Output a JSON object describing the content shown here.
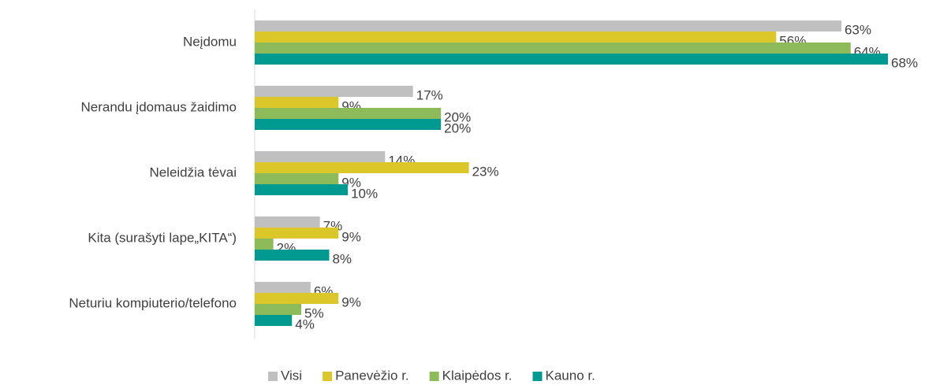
{
  "chart_data": {
    "type": "bar",
    "orientation": "horizontal",
    "categories": [
      "Neįdomu",
      "Nerandu įdomaus žaidimo",
      "Neleidžia tėvai",
      "Kita (surašyti lape„KITA“)",
      "Neturiu kompiuterio/telefono"
    ],
    "series": [
      {
        "name": "Visi",
        "color": "#c0c0c0",
        "values": [
          63,
          17,
          14,
          7,
          6
        ],
        "value_labels": [
          "63%",
          "17%",
          "14%",
          "7%",
          "6%"
        ]
      },
      {
        "name": "Panevėžio r.",
        "color": "#dcc72a",
        "values": [
          56,
          9,
          23,
          9,
          9
        ],
        "value_labels": [
          "56%",
          "9%",
          "23%",
          "9%",
          "9%"
        ]
      },
      {
        "name": "Klaipėdos r.",
        "color": "#8dbb5a",
        "values": [
          64,
          20,
          9,
          2,
          5
        ],
        "value_labels": [
          "64%",
          "20%",
          "9%",
          "2%",
          "5%"
        ]
      },
      {
        "name": "Kauno r.",
        "color": "#009a90",
        "values": [
          68,
          20,
          10,
          8,
          4
        ],
        "value_labels": [
          "68%",
          "20%",
          "10%",
          "8%",
          "4%"
        ]
      }
    ],
    "legend": "bottom"
  }
}
